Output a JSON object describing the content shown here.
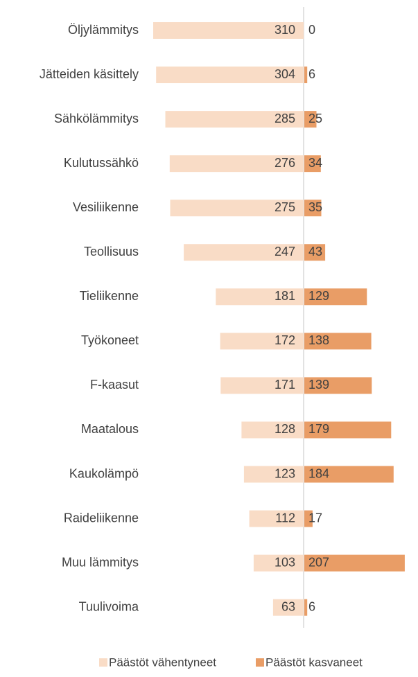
{
  "chart_data": {
    "type": "diverging-bar",
    "categories": [
      "Öljylämmitys",
      "Jätteiden käsittely",
      "Sähkölämmitys",
      "Kulutussähkö",
      "Vesiliikenne",
      "Teollisuus",
      "Tieliikenne",
      "Työkoneet",
      "F-kaasut",
      "Maatalous",
      "Kaukolämpö",
      "Raideliikenne",
      "Muu lämmitys",
      "Tuulivoima"
    ],
    "series": [
      {
        "name": "Päästöt vähentyneet",
        "color": "#f9dcc6",
        "values": [
          310,
          304,
          285,
          276,
          275,
          247,
          181,
          172,
          171,
          128,
          123,
          112,
          103,
          63
        ]
      },
      {
        "name": "Päästöt kasvaneet",
        "color": "#e99d66",
        "values": [
          0,
          6,
          25,
          34,
          35,
          43,
          129,
          138,
          139,
          179,
          184,
          17,
          207,
          6
        ]
      }
    ],
    "legend": "bottom"
  }
}
